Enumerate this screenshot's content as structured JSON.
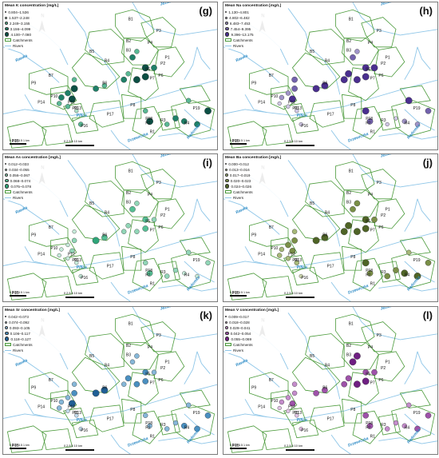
{
  "figure": {
    "background": "#ffffff",
    "river_color": "#8ec6e8",
    "catchment_color": "#4a9a3a",
    "river_names": [
      "Jeziorka",
      "Rawka",
      "Pilica",
      "Drzewiczka",
      "Radomka"
    ],
    "catchments": [
      "B1",
      "B2",
      "B3",
      "B4",
      "B5",
      "B6",
      "B7",
      "P1",
      "P2",
      "P3",
      "P4",
      "P5",
      "P6",
      "P7",
      "P8",
      "P9",
      "P10",
      "P11",
      "P12",
      "P13",
      "P14",
      "P15",
      "P16",
      "P17",
      "P18",
      "P19",
      "R1",
      "R2",
      "R3",
      "R4"
    ],
    "north_label": "N",
    "scale_small": [
      "0",
      "0.25 0.5",
      "1 km"
    ],
    "scale_large": [
      "0",
      "2.5",
      "5",
      "10 km"
    ],
    "legend_common": {
      "catchments": "Catchments",
      "rivers": "Rivers"
    }
  },
  "panels": [
    {
      "letter": "(g)",
      "title": "Mean K concentration [mg/L]",
      "classes": [
        "0.804–1.536",
        "1.537–2.248",
        "2.249–3.155",
        "3.156–4.099",
        "4.100–7.080"
      ],
      "colors": [
        "#e8f5ee",
        "#a9dcc3",
        "#59b894",
        "#1f8068",
        "#0c4f44"
      ],
      "sites": [
        [
          0.62,
          0.33,
          2
        ],
        [
          0.6,
          0.37,
          3
        ],
        [
          0.66,
          0.44,
          4
        ],
        [
          0.7,
          0.44,
          3
        ],
        [
          0.58,
          0.48,
          2
        ],
        [
          0.66,
          0.5,
          4
        ],
        [
          0.62,
          0.52,
          4
        ],
        [
          0.56,
          0.52,
          3
        ],
        [
          0.33,
          0.52,
          2
        ],
        [
          0.33,
          0.58,
          4
        ],
        [
          0.3,
          0.61,
          3
        ],
        [
          0.27,
          0.64,
          3
        ],
        [
          0.32,
          0.65,
          4
        ],
        [
          0.26,
          0.68,
          2
        ],
        [
          0.3,
          0.7,
          2
        ],
        [
          0.34,
          0.73,
          1
        ],
        [
          0.36,
          0.82,
          2
        ],
        [
          0.66,
          0.73,
          2
        ],
        [
          0.68,
          0.8,
          4
        ],
        [
          0.76,
          0.82,
          2
        ],
        [
          0.8,
          0.78,
          3
        ],
        [
          0.84,
          0.8,
          3
        ],
        [
          0.9,
          0.82,
          3
        ],
        [
          0.95,
          0.73,
          4
        ],
        [
          0.86,
          0.66,
          2
        ],
        [
          0.43,
          0.58,
          3
        ],
        [
          0.47,
          0.56,
          2
        ]
      ]
    },
    {
      "letter": "(h)",
      "title": "Mean Na concentration [mg/L]",
      "classes": [
        "1.130–4.801",
        "4.802–6.482",
        "6.483–7.453",
        "7.454–9.395",
        "9.396–13.175"
      ],
      "colors": [
        "#f2eff8",
        "#cfc6e4",
        "#a094c8",
        "#7362ad",
        "#4a2f8f"
      ],
      "sites": [
        [
          0.62,
          0.33,
          2
        ],
        [
          0.6,
          0.37,
          3
        ],
        [
          0.66,
          0.44,
          4
        ],
        [
          0.7,
          0.44,
          4
        ],
        [
          0.58,
          0.48,
          4
        ],
        [
          0.66,
          0.5,
          4
        ],
        [
          0.62,
          0.52,
          4
        ],
        [
          0.56,
          0.52,
          4
        ],
        [
          0.33,
          0.52,
          3
        ],
        [
          0.33,
          0.58,
          3
        ],
        [
          0.3,
          0.61,
          2
        ],
        [
          0.27,
          0.64,
          2
        ],
        [
          0.32,
          0.65,
          4
        ],
        [
          0.26,
          0.68,
          1
        ],
        [
          0.3,
          0.7,
          1
        ],
        [
          0.34,
          0.73,
          1
        ],
        [
          0.36,
          0.82,
          1
        ],
        [
          0.66,
          0.73,
          4
        ],
        [
          0.68,
          0.8,
          3
        ],
        [
          0.76,
          0.82,
          1
        ],
        [
          0.8,
          0.78,
          1
        ],
        [
          0.84,
          0.8,
          2
        ],
        [
          0.9,
          0.82,
          2
        ],
        [
          0.95,
          0.73,
          3
        ],
        [
          0.86,
          0.66,
          4
        ],
        [
          0.43,
          0.58,
          4
        ],
        [
          0.47,
          0.56,
          4
        ]
      ]
    },
    {
      "letter": "(i)",
      "title": "Mean As concentration [mg/L]",
      "classes": [
        "0.012–0.033",
        "0.034–0.055",
        "0.056–0.067",
        "0.068–0.074",
        "0.075–0.078"
      ],
      "colors": [
        "#eef8f3",
        "#c5ead9",
        "#91d6b7",
        "#55bf94",
        "#2fa579"
      ],
      "sites": [
        [
          0.62,
          0.33,
          2
        ],
        [
          0.6,
          0.37,
          3
        ],
        [
          0.66,
          0.44,
          3
        ],
        [
          0.7,
          0.44,
          2
        ],
        [
          0.58,
          0.48,
          2
        ],
        [
          0.66,
          0.5,
          3
        ],
        [
          0.62,
          0.52,
          2
        ],
        [
          0.56,
          0.52,
          2
        ],
        [
          0.33,
          0.52,
          1
        ],
        [
          0.33,
          0.58,
          2
        ],
        [
          0.3,
          0.61,
          1
        ],
        [
          0.27,
          0.64,
          1
        ],
        [
          0.32,
          0.65,
          2
        ],
        [
          0.26,
          0.68,
          1
        ],
        [
          0.3,
          0.7,
          1
        ],
        [
          0.34,
          0.73,
          1
        ],
        [
          0.36,
          0.82,
          1
        ],
        [
          0.66,
          0.73,
          2
        ],
        [
          0.68,
          0.8,
          3
        ],
        [
          0.76,
          0.82,
          2
        ],
        [
          0.8,
          0.78,
          2
        ],
        [
          0.84,
          0.8,
          1
        ],
        [
          0.9,
          0.82,
          1
        ],
        [
          0.95,
          0.73,
          2
        ],
        [
          0.86,
          0.66,
          2
        ],
        [
          0.43,
          0.58,
          4
        ],
        [
          0.47,
          0.56,
          3
        ]
      ]
    },
    {
      "letter": "(j)",
      "title": "Mean Ba concentration [mg/L]",
      "classes": [
        "0.000–0.012",
        "0.013–0.016",
        "0.017–0.019",
        "0.020–0.023",
        "0.024–0.026"
      ],
      "colors": [
        "#f4f6ec",
        "#d2dcb2",
        "#a6b878",
        "#7a8f47",
        "#4f6426"
      ],
      "sites": [
        [
          0.62,
          0.33,
          3
        ],
        [
          0.6,
          0.37,
          3
        ],
        [
          0.66,
          0.44,
          4
        ],
        [
          0.7,
          0.44,
          3
        ],
        [
          0.58,
          0.48,
          4
        ],
        [
          0.66,
          0.5,
          4
        ],
        [
          0.62,
          0.52,
          4
        ],
        [
          0.56,
          0.52,
          4
        ],
        [
          0.33,
          0.52,
          2
        ],
        [
          0.33,
          0.58,
          3
        ],
        [
          0.3,
          0.61,
          3
        ],
        [
          0.27,
          0.64,
          2
        ],
        [
          0.32,
          0.65,
          3
        ],
        [
          0.26,
          0.68,
          2
        ],
        [
          0.3,
          0.7,
          2
        ],
        [
          0.34,
          0.73,
          2
        ],
        [
          0.36,
          0.82,
          1
        ],
        [
          0.66,
          0.73,
          4
        ],
        [
          0.68,
          0.8,
          3
        ],
        [
          0.76,
          0.82,
          3
        ],
        [
          0.8,
          0.78,
          3
        ],
        [
          0.84,
          0.8,
          4
        ],
        [
          0.9,
          0.82,
          4
        ],
        [
          0.95,
          0.73,
          3
        ],
        [
          0.86,
          0.66,
          2
        ],
        [
          0.43,
          0.58,
          4
        ],
        [
          0.47,
          0.56,
          4
        ]
      ]
    },
    {
      "letter": "(k)",
      "title": "Mean Sr concentration [mg/L]",
      "classes": [
        "0.042–0.073",
        "0.074–0.092",
        "0.093–0.105",
        "0.106–0.117",
        "0.118–0.127"
      ],
      "colors": [
        "#eef5fa",
        "#c3dbec",
        "#86b7d8",
        "#4a8fc0",
        "#1f5f95"
      ],
      "sites": [
        [
          0.62,
          0.33,
          2
        ],
        [
          0.6,
          0.37,
          2
        ],
        [
          0.66,
          0.44,
          3
        ],
        [
          0.7,
          0.44,
          2
        ],
        [
          0.58,
          0.48,
          3
        ],
        [
          0.66,
          0.5,
          3
        ],
        [
          0.62,
          0.52,
          3
        ],
        [
          0.56,
          0.52,
          2
        ],
        [
          0.33,
          0.52,
          2
        ],
        [
          0.33,
          0.58,
          3
        ],
        [
          0.3,
          0.61,
          2
        ],
        [
          0.27,
          0.64,
          2
        ],
        [
          0.32,
          0.65,
          4
        ],
        [
          0.26,
          0.68,
          2
        ],
        [
          0.3,
          0.7,
          1
        ],
        [
          0.34,
          0.73,
          1
        ],
        [
          0.36,
          0.82,
          1
        ],
        [
          0.66,
          0.73,
          2
        ],
        [
          0.68,
          0.8,
          2
        ],
        [
          0.76,
          0.82,
          2
        ],
        [
          0.8,
          0.78,
          2
        ],
        [
          0.84,
          0.8,
          3
        ],
        [
          0.9,
          0.82,
          3
        ],
        [
          0.95,
          0.73,
          3
        ],
        [
          0.86,
          0.66,
          2
        ],
        [
          0.43,
          0.58,
          4
        ],
        [
          0.47,
          0.56,
          4
        ]
      ]
    },
    {
      "letter": "(l)",
      "title": "Mean V concentration [mg/L]",
      "classes": [
        "0.009–0.017",
        "0.018–0.028",
        "0.029–0.041",
        "0.042–0.054",
        "0.055–0.069"
      ],
      "colors": [
        "#f6eef7",
        "#e0c2e3",
        "#c48ccb",
        "#9e52a9",
        "#6f1f82"
      ],
      "sites": [
        [
          0.62,
          0.33,
          4
        ],
        [
          0.6,
          0.37,
          4
        ],
        [
          0.66,
          0.44,
          3
        ],
        [
          0.7,
          0.44,
          3
        ],
        [
          0.58,
          0.48,
          3
        ],
        [
          0.66,
          0.5,
          4
        ],
        [
          0.62,
          0.52,
          4
        ],
        [
          0.56,
          0.52,
          3
        ],
        [
          0.33,
          0.52,
          2
        ],
        [
          0.33,
          0.58,
          2
        ],
        [
          0.3,
          0.61,
          2
        ],
        [
          0.27,
          0.64,
          2
        ],
        [
          0.32,
          0.65,
          3
        ],
        [
          0.26,
          0.68,
          1
        ],
        [
          0.3,
          0.7,
          1
        ],
        [
          0.34,
          0.73,
          1
        ],
        [
          0.36,
          0.82,
          1
        ],
        [
          0.66,
          0.73,
          3
        ],
        [
          0.68,
          0.8,
          3
        ],
        [
          0.76,
          0.82,
          2
        ],
        [
          0.8,
          0.78,
          2
        ],
        [
          0.84,
          0.8,
          2
        ],
        [
          0.9,
          0.82,
          3
        ],
        [
          0.95,
          0.73,
          3
        ],
        [
          0.86,
          0.66,
          2
        ],
        [
          0.43,
          0.58,
          3
        ],
        [
          0.47,
          0.56,
          3
        ]
      ]
    }
  ]
}
